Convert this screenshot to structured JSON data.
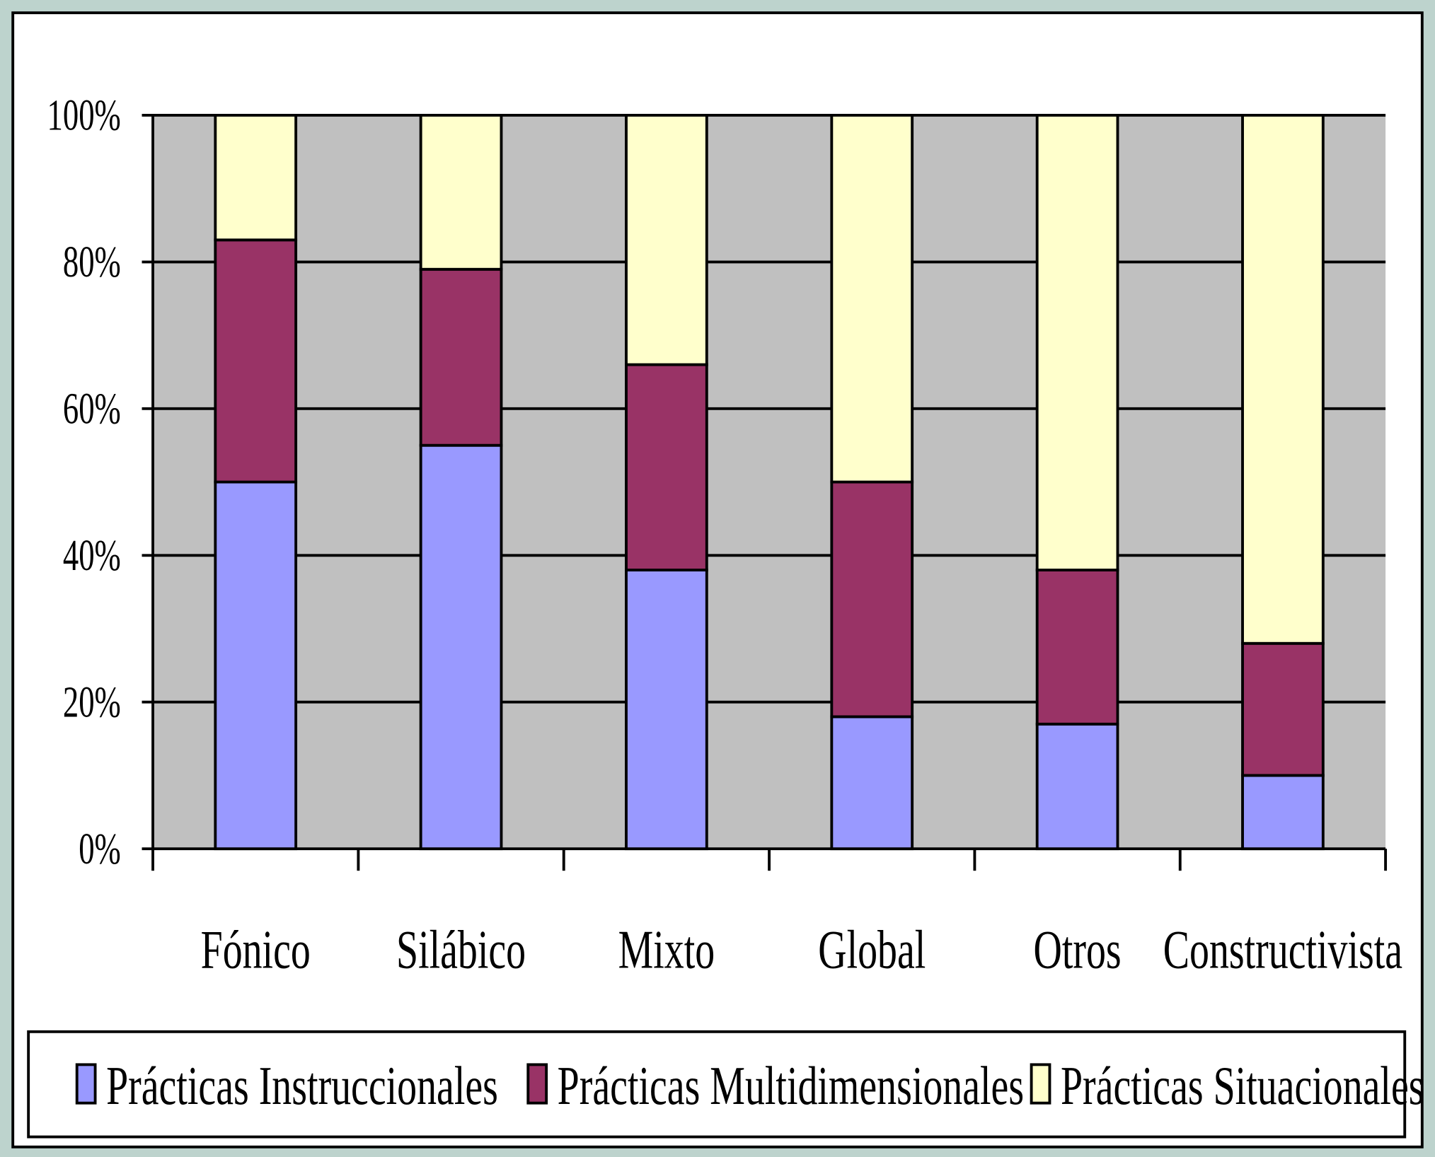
{
  "chart_data": {
    "type": "stacked_bar",
    "categories": [
      "Fónico",
      "Silábico",
      "Mixto",
      "Global",
      "Otros",
      "Constructivista"
    ],
    "series": [
      {
        "name": "Prácticas Instruccionales",
        "color": "#9999ff",
        "values": [
          50,
          55,
          38,
          18,
          17,
          10
        ]
      },
      {
        "name": "Prácticas Multidimensionales",
        "color": "#993366",
        "values": [
          33,
          24,
          28,
          32,
          21,
          18
        ]
      },
      {
        "name": "Prácticas Situacionales",
        "color": "#ffffcc",
        "values": [
          17,
          21,
          34,
          50,
          62,
          72
        ]
      }
    ],
    "ylim": [
      0,
      100
    ],
    "yticks": [
      {
        "value": 0,
        "label": "0%"
      },
      {
        "value": 20,
        "label": "20%"
      },
      {
        "value": 40,
        "label": "40%"
      },
      {
        "value": 60,
        "label": "60%"
      },
      {
        "value": 80,
        "label": "80%"
      },
      {
        "value": 100,
        "label": "100%"
      }
    ],
    "grid": true,
    "legend": "bottom"
  }
}
